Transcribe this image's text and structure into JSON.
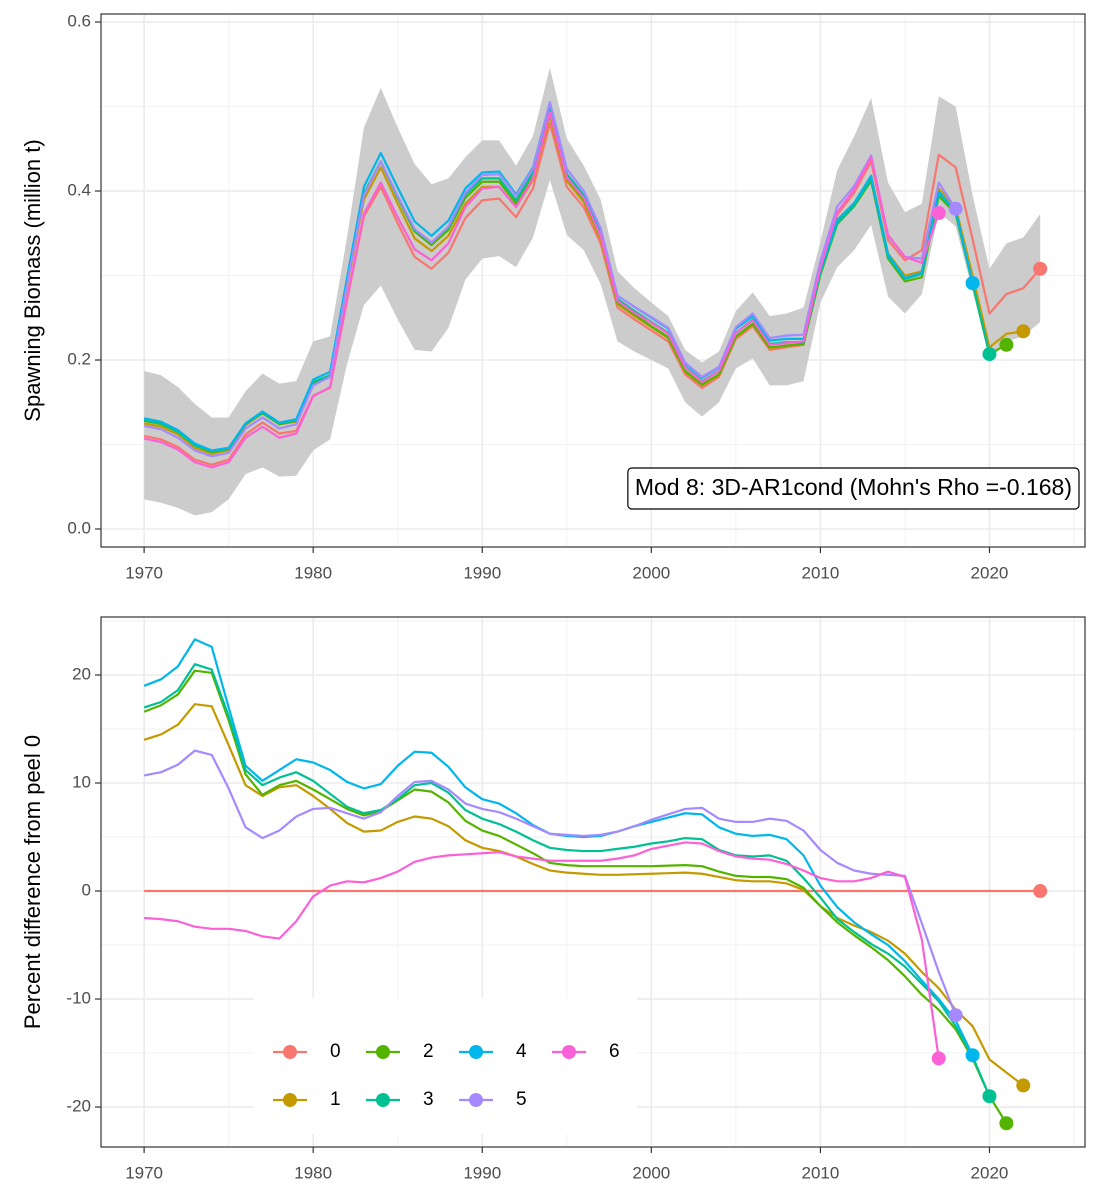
{
  "chart_data": [
    {
      "type": "line",
      "ylabel": "Spawning Biomass (million t)",
      "annotation": "Mod 8: 3D-AR1cond (Mohn's Rho =-0.168)",
      "xlim": [
        1967.45,
        2025.65
      ],
      "ylim": [
        -0.0213,
        0.6095
      ],
      "xticks": [
        1970,
        1980,
        1990,
        2000,
        2010,
        2020
      ],
      "xminor": [
        1975,
        1985,
        1995,
        2005,
        2015,
        2025
      ],
      "yticks": [
        {
          "value": 0,
          "label": "0.0"
        },
        0.2,
        0.4,
        0.6
      ],
      "yminor": [
        0.1,
        0.3,
        0.5
      ],
      "grid": true,
      "legend": false,
      "x": [
        1970,
        1971,
        1972,
        1973,
        1974,
        1975,
        1976,
        1977,
        1978,
        1979,
        1980,
        1981,
        1982,
        1983,
        1984,
        1985,
        1986,
        1987,
        1988,
        1989,
        1990,
        1991,
        1992,
        1993,
        1994,
        1995,
        1996,
        1997,
        1998,
        1999,
        2000,
        2001,
        2002,
        2003,
        2004,
        2005,
        2006,
        2007,
        2008,
        2009,
        2010,
        2011,
        2012,
        2013,
        2014,
        2015,
        2016,
        2017,
        2018,
        2019,
        2020,
        2021,
        2022,
        2023
      ],
      "band": {
        "color": "#cccccc",
        "upper": [
          0.187,
          0.182,
          0.168,
          0.148,
          0.132,
          0.132,
          0.163,
          0.184,
          0.172,
          0.175,
          0.222,
          0.228,
          0.345,
          0.475,
          0.522,
          0.475,
          0.432,
          0.408,
          0.415,
          0.44,
          0.46,
          0.46,
          0.43,
          0.465,
          0.546,
          0.462,
          0.43,
          0.39,
          0.305,
          0.285,
          0.268,
          0.252,
          0.212,
          0.197,
          0.21,
          0.258,
          0.28,
          0.252,
          0.255,
          0.262,
          0.34,
          0.425,
          0.465,
          0.51,
          0.41,
          0.375,
          0.385,
          0.512,
          0.5,
          0.395,
          0.308,
          0.338,
          0.345,
          0.373
        ],
        "lower": [
          0.035,
          0.031,
          0.025,
          0.016,
          0.02,
          0.035,
          0.065,
          0.073,
          0.062,
          0.063,
          0.093,
          0.106,
          0.195,
          0.265,
          0.288,
          0.248,
          0.212,
          0.21,
          0.238,
          0.295,
          0.32,
          0.323,
          0.31,
          0.345,
          0.413,
          0.348,
          0.33,
          0.29,
          0.222,
          0.21,
          0.2,
          0.19,
          0.15,
          0.133,
          0.15,
          0.19,
          0.202,
          0.17,
          0.17,
          0.175,
          0.268,
          0.31,
          0.33,
          0.36,
          0.275,
          0.255,
          0.278,
          0.375,
          0.358,
          0.282,
          0.2,
          0.222,
          0.228,
          0.245
        ]
      },
      "series": [
        {
          "name": "0",
          "color": "#F8766D",
          "values": [
            0.11,
            0.106,
            0.097,
            0.082,
            0.076,
            0.082,
            0.112,
            0.126,
            0.113,
            0.116,
            0.158,
            0.167,
            0.27,
            0.37,
            0.405,
            0.362,
            0.322,
            0.308,
            0.327,
            0.368,
            0.389,
            0.391,
            0.369,
            0.403,
            0.48,
            0.405,
            0.381,
            0.338,
            0.262,
            0.248,
            0.235,
            0.222,
            0.183,
            0.167,
            0.18,
            0.225,
            0.24,
            0.212,
            0.215,
            0.218,
            0.305,
            0.372,
            0.398,
            0.435,
            0.342,
            0.318,
            0.33,
            0.443,
            0.428,
            0.343,
            0.255,
            0.278,
            0.285,
            0.308
          ]
        },
        {
          "name": "1",
          "color": "#C49A00",
          "values": [
            0.125,
            0.121,
            0.112,
            0.096,
            0.089,
            0.093,
            0.123,
            0.137,
            0.124,
            0.127,
            0.172,
            0.18,
            0.287,
            0.39,
            0.428,
            0.385,
            0.344,
            0.329,
            0.347,
            0.385,
            0.405,
            0.405,
            0.381,
            0.413,
            0.489,
            0.412,
            0.387,
            0.343,
            0.266,
            0.252,
            0.239,
            0.226,
            0.186,
            0.17,
            0.182,
            0.227,
            0.242,
            0.214,
            0.217,
            0.218,
            0.301,
            0.363,
            0.385,
            0.418,
            0.326,
            0.3,
            0.305,
            0.403,
            0.381,
            0.3,
            0.215,
            0.231,
            0.234,
            null
          ]
        },
        {
          "name": "2",
          "color": "#53B400",
          "values": [
            0.128,
            0.124,
            0.115,
            0.099,
            0.091,
            0.095,
            0.124,
            0.137,
            0.124,
            0.128,
            0.173,
            0.181,
            0.291,
            0.396,
            0.435,
            0.392,
            0.352,
            0.336,
            0.354,
            0.392,
            0.411,
            0.411,
            0.385,
            0.417,
            0.492,
            0.415,
            0.39,
            0.346,
            0.268,
            0.254,
            0.24,
            0.227,
            0.187,
            0.171,
            0.183,
            0.228,
            0.243,
            0.215,
            0.217,
            0.219,
            0.301,
            0.361,
            0.382,
            0.412,
            0.32,
            0.293,
            0.298,
            0.394,
            0.373,
            0.29,
            0.207,
            0.218,
            null,
            null
          ]
        },
        {
          "name": "3",
          "color": "#00C094",
          "values": [
            0.129,
            0.125,
            0.115,
            0.099,
            0.092,
            0.095,
            0.125,
            0.138,
            0.125,
            0.129,
            0.174,
            0.182,
            0.291,
            0.397,
            0.435,
            0.393,
            0.354,
            0.339,
            0.357,
            0.396,
            0.415,
            0.415,
            0.389,
            0.422,
            0.499,
            0.42,
            0.395,
            0.351,
            0.272,
            0.258,
            0.245,
            0.232,
            0.192,
            0.175,
            0.187,
            0.232,
            0.248,
            0.219,
            0.221,
            0.221,
            0.303,
            0.362,
            0.383,
            0.414,
            0.322,
            0.296,
            0.302,
            0.398,
            0.375,
            0.291,
            0.207,
            null,
            null,
            null
          ]
        },
        {
          "name": "4",
          "color": "#00B6EB",
          "values": [
            0.131,
            0.127,
            0.117,
            0.101,
            0.093,
            0.096,
            0.125,
            0.139,
            0.126,
            0.13,
            0.177,
            0.186,
            0.297,
            0.405,
            0.445,
            0.404,
            0.364,
            0.347,
            0.365,
            0.403,
            0.422,
            0.423,
            0.396,
            0.428,
            0.505,
            0.426,
            0.4,
            0.355,
            0.276,
            0.263,
            0.25,
            0.237,
            0.196,
            0.179,
            0.191,
            0.237,
            0.252,
            0.223,
            0.225,
            0.225,
            0.307,
            0.366,
            0.386,
            0.418,
            0.325,
            0.297,
            0.303,
            0.399,
            0.377,
            0.291,
            null,
            null,
            null,
            null
          ]
        },
        {
          "name": "5",
          "color": "#A58AFF",
          "values": [
            0.122,
            0.118,
            0.108,
            0.093,
            0.086,
            0.09,
            0.119,
            0.132,
            0.119,
            0.124,
            0.17,
            0.18,
            0.289,
            0.395,
            0.435,
            0.394,
            0.355,
            0.339,
            0.358,
            0.398,
            0.419,
            0.42,
            0.394,
            0.427,
            0.505,
            0.426,
            0.4,
            0.356,
            0.276,
            0.263,
            0.251,
            0.238,
            0.197,
            0.18,
            0.192,
            0.239,
            0.255,
            0.226,
            0.229,
            0.23,
            0.317,
            0.382,
            0.406,
            0.442,
            0.347,
            0.322,
            0.32,
            0.41,
            0.379,
            null,
            null,
            null,
            null,
            null
          ]
        },
        {
          "name": "6",
          "color": "#FB61D7",
          "values": [
            0.107,
            0.103,
            0.094,
            0.079,
            0.073,
            0.079,
            0.108,
            0.121,
            0.108,
            0.113,
            0.157,
            0.168,
            0.272,
            0.373,
            0.41,
            0.369,
            0.331,
            0.318,
            0.338,
            0.381,
            0.403,
            0.405,
            0.381,
            0.415,
            0.493,
            0.416,
            0.392,
            0.347,
            0.27,
            0.256,
            0.244,
            0.231,
            0.191,
            0.174,
            0.187,
            0.232,
            0.247,
            0.218,
            0.22,
            0.222,
            0.309,
            0.375,
            0.402,
            0.44,
            0.348,
            0.322,
            0.315,
            0.374,
            null,
            null,
            null,
            null,
            null,
            null
          ]
        }
      ]
    },
    {
      "type": "line",
      "ylabel": "Percent difference from peel 0",
      "xlim": [
        1967.45,
        2025.65
      ],
      "ylim": [
        -23.7,
        25.37
      ],
      "xticks": [
        1970,
        1980,
        1990,
        2000,
        2010,
        2020
      ],
      "xminor": [
        1975,
        1985,
        1995,
        2005,
        2015,
        2025
      ],
      "yticks": [
        -20,
        -10,
        0,
        10,
        20
      ],
      "yminor": [
        -15,
        -5,
        5,
        15,
        25
      ],
      "grid": true,
      "legend": true,
      "legend_position": "bottom-left",
      "x": [
        1970,
        1971,
        1972,
        1973,
        1974,
        1975,
        1976,
        1977,
        1978,
        1979,
        1980,
        1981,
        1982,
        1983,
        1984,
        1985,
        1986,
        1987,
        1988,
        1989,
        1990,
        1991,
        1992,
        1993,
        1994,
        1995,
        1996,
        1997,
        1998,
        1999,
        2000,
        2001,
        2002,
        2003,
        2004,
        2005,
        2006,
        2007,
        2008,
        2009,
        2010,
        2011,
        2012,
        2013,
        2014,
        2015,
        2016,
        2017,
        2018,
        2019,
        2020,
        2021,
        2022,
        2023
      ],
      "series": [
        {
          "name": "0",
          "color": "#F8766D",
          "values": [
            0,
            0,
            0,
            0,
            0,
            0,
            0,
            0,
            0,
            0,
            0,
            0,
            0,
            0,
            0,
            0,
            0,
            0,
            0,
            0,
            0,
            0,
            0,
            0,
            0,
            0,
            0,
            0,
            0,
            0,
            0,
            0,
            0,
            0,
            0,
            0,
            0,
            0,
            0,
            0,
            0,
            0,
            0,
            0,
            0,
            0,
            0,
            0,
            0,
            0,
            0,
            0,
            0,
            0
          ]
        },
        {
          "name": "1",
          "color": "#C49A00",
          "values": [
            14,
            14.5,
            15.4,
            17.3,
            17.1,
            13.5,
            9.8,
            8.8,
            9.6,
            9.8,
            8.8,
            7.6,
            6.3,
            5.5,
            5.6,
            6.4,
            6.9,
            6.7,
            6,
            4.7,
            4,
            3.7,
            3.2,
            2.5,
            1.9,
            1.7,
            1.6,
            1.5,
            1.5,
            1.55,
            1.6,
            1.65,
            1.7,
            1.6,
            1.3,
            1,
            0.9,
            0.9,
            0.7,
            0.1,
            -1.4,
            -2.5,
            -3.2,
            -3.8,
            -4.6,
            -5.8,
            -7.5,
            -9,
            -11,
            -12.5,
            -15.6,
            -16.8,
            -18,
            null
          ]
        },
        {
          "name": "2",
          "color": "#53B400",
          "values": [
            16.6,
            17.2,
            18.2,
            20.4,
            20.2,
            15.8,
            10.8,
            8.9,
            9.8,
            10.2,
            9.4,
            8.5,
            7.6,
            7,
            7.4,
            8.4,
            9.4,
            9.2,
            8.2,
            6.5,
            5.6,
            5.1,
            4.3,
            3.5,
            2.6,
            2.4,
            2.3,
            2.3,
            2.3,
            2.3,
            2.3,
            2.35,
            2.4,
            2.3,
            1.8,
            1.4,
            1.3,
            1.3,
            1.1,
            0.3,
            -1.4,
            -2.9,
            -4.1,
            -5.2,
            -6.4,
            -7.9,
            -9.6,
            -11,
            -12.8,
            -15.5,
            -19,
            -21.5,
            null,
            null
          ]
        },
        {
          "name": "3",
          "color": "#00C094",
          "values": [
            17,
            17.5,
            18.6,
            21,
            20.5,
            16.2,
            11.2,
            9.8,
            10.5,
            11,
            10.2,
            9,
            7.8,
            7.2,
            7.5,
            8.5,
            9.8,
            10,
            9.1,
            7.5,
            6.7,
            6.2,
            5.5,
            4.7,
            4,
            3.8,
            3.7,
            3.7,
            3.9,
            4.1,
            4.4,
            4.6,
            4.9,
            4.8,
            3.8,
            3.3,
            3.2,
            3.3,
            2.8,
            1.2,
            -0.6,
            -2.6,
            -3.8,
            -4.9,
            -5.8,
            -7,
            -8.6,
            -10.2,
            -12.5,
            -15.3,
            -19,
            null,
            null,
            null
          ]
        },
        {
          "name": "4",
          "color": "#00B6EB",
          "values": [
            19,
            19.6,
            20.8,
            23.3,
            22.6,
            17,
            11.6,
            10.2,
            11.2,
            12.2,
            11.9,
            11.2,
            10.1,
            9.5,
            9.9,
            11.6,
            12.9,
            12.8,
            11.5,
            9.6,
            8.5,
            8.1,
            7.2,
            6.1,
            5.3,
            5.1,
            5,
            5.1,
            5.5,
            6,
            6.4,
            6.8,
            7.2,
            7.1,
            5.9,
            5.3,
            5.1,
            5.2,
            4.8,
            3.3,
            0.5,
            -1.5,
            -2.9,
            -4,
            -5,
            -6.5,
            -8.3,
            -10,
            -12,
            -15.2,
            null,
            null,
            null,
            null
          ]
        },
        {
          "name": "5",
          "color": "#A58AFF",
          "values": [
            10.7,
            11,
            11.7,
            13,
            12.6,
            9.5,
            5.9,
            4.9,
            5.6,
            6.9,
            7.6,
            7.7,
            7.2,
            6.7,
            7.3,
            8.8,
            10.1,
            10.2,
            9.4,
            8.1,
            7.6,
            7.3,
            6.7,
            6,
            5.3,
            5.2,
            5.1,
            5.2,
            5.5,
            6,
            6.6,
            7.1,
            7.6,
            7.7,
            6.7,
            6.4,
            6.4,
            6.7,
            6.5,
            5.6,
            3.8,
            2.6,
            1.9,
            1.6,
            1.5,
            1.4,
            -3,
            -7.5,
            -11.5,
            null,
            null,
            null,
            null,
            null
          ]
        },
        {
          "name": "6",
          "color": "#FB61D7",
          "values": [
            -2.5,
            -2.6,
            -2.8,
            -3.3,
            -3.5,
            -3.5,
            -3.7,
            -4.2,
            -4.4,
            -2.8,
            -0.5,
            0.5,
            0.9,
            0.8,
            1.2,
            1.8,
            2.7,
            3.1,
            3.3,
            3.4,
            3.5,
            3.6,
            3.2,
            3,
            2.8,
            2.8,
            2.8,
            2.8,
            3,
            3.3,
            3.9,
            4.2,
            4.5,
            4.4,
            3.7,
            3.2,
            3,
            2.9,
            2.5,
            1.9,
            1.2,
            0.9,
            0.9,
            1.2,
            1.8,
            1.3,
            -4.5,
            -15.5,
            null,
            null,
            null,
            null,
            null,
            null
          ]
        }
      ]
    }
  ]
}
